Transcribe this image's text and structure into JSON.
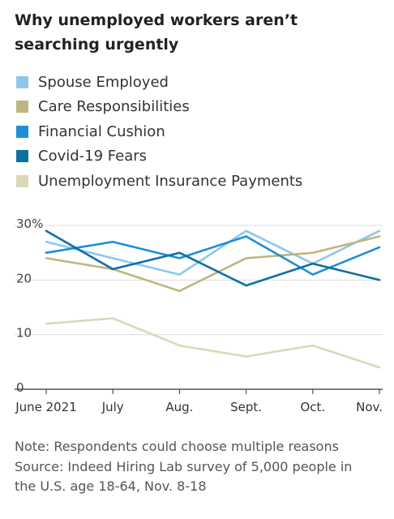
{
  "title": "Why unemployed workers aren’t searching urgently",
  "legend": [
    {
      "label": "Spouse Employed",
      "color": "#8fc7ea"
    },
    {
      "label": "Care Responsibilities",
      "color": "#bfb582"
    },
    {
      "label": "Financial Cushion",
      "color": "#1d8fd6"
    },
    {
      "label": "Covid-19 Fears",
      "color": "#0f6fa3"
    },
    {
      "label": "Unemployment Insurance Payments",
      "color": "#dcd8b4"
    }
  ],
  "note": {
    "line1": "Note: Respondents could choose multiple reasons",
    "line2": "Source: Indeed Hiring Lab survey of 5,000 people in",
    "line3": "the U.S. age 18-64, Nov. 8-18"
  },
  "chart_data": {
    "type": "line",
    "categories": [
      "June 2021",
      "July",
      "Aug.",
      "Sept.",
      "Oct.",
      "Nov."
    ],
    "ylim": [
      0,
      30
    ],
    "yticks": [
      "30%",
      "20",
      "10",
      "0"
    ],
    "grid": true,
    "series": [
      {
        "name": "Spouse Employed",
        "color": "#8fc7ea",
        "values": [
          27,
          24,
          21,
          29,
          23,
          29
        ]
      },
      {
        "name": "Care Responsibilities",
        "color": "#bfb582",
        "values": [
          24,
          22,
          18,
          24,
          25,
          28
        ]
      },
      {
        "name": "Financial Cushion",
        "color": "#1d8fd6",
        "values": [
          25,
          27,
          24,
          28,
          21,
          26
        ]
      },
      {
        "name": "Covid-19 Fears",
        "color": "#0f6fa3",
        "values": [
          29,
          22,
          25,
          19,
          23,
          20
        ]
      },
      {
        "name": "Unemployment Insurance Payments",
        "color": "#dcd8b4",
        "values": [
          12,
          13,
          8,
          6,
          8,
          4
        ]
      }
    ]
  }
}
